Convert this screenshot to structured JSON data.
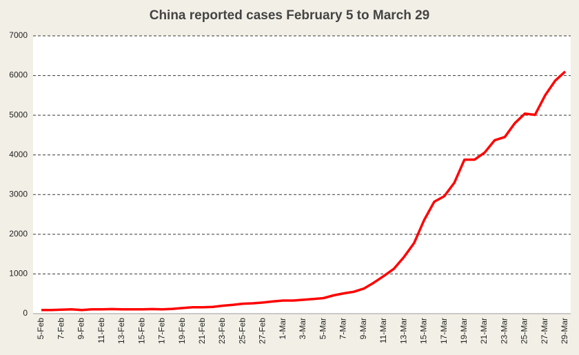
{
  "chart_data": {
    "type": "line",
    "title": "China reported cases February 5 to March 29",
    "categories": [
      "5-Feb",
      null,
      "7-Feb",
      null,
      "9-Feb",
      null,
      "11-Feb",
      null,
      "13-Feb",
      null,
      "15-Feb",
      null,
      "17-Feb",
      null,
      "19-Feb",
      null,
      "21-Feb",
      null,
      "23-Feb",
      null,
      "25-Feb",
      null,
      "27-Feb",
      null,
      "1-Mar",
      null,
      "3-Mar",
      null,
      "5-Mar",
      null,
      "7-Mar",
      null,
      "9-Mar",
      null,
      "11-Mar",
      null,
      "13-Mar",
      null,
      "15-Mar",
      null,
      "17-Mar",
      null,
      "19-Mar",
      null,
      "21-Mar",
      null,
      "23-Mar",
      null,
      "25-Mar",
      null,
      "27-Mar",
      null,
      "29-Mar"
    ],
    "values": [
      90,
      90,
      100,
      110,
      90,
      110,
      110,
      115,
      110,
      110,
      110,
      115,
      110,
      120,
      140,
      160,
      160,
      170,
      200,
      220,
      250,
      260,
      280,
      310,
      330,
      330,
      350,
      370,
      390,
      460,
      510,
      550,
      630,
      780,
      950,
      1130,
      1430,
      1780,
      2360,
      2820,
      2960,
      3300,
      3880,
      3880,
      4060,
      4370,
      4450,
      4800,
      5040,
      5010,
      5500,
      5870,
      6100
    ],
    "color": "#ff0000",
    "ylim": [
      0,
      7000
    ],
    "yticks": [
      0,
      1000,
      2000,
      3000,
      4000,
      5000,
      6000,
      7000
    ],
    "grid": true
  }
}
